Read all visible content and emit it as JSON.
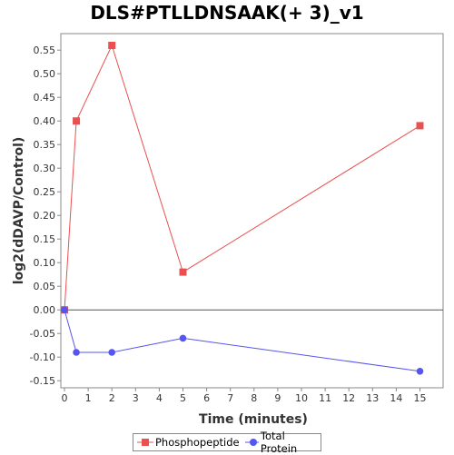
{
  "chart_data": {
    "type": "line",
    "title": "DLS#PTLLDNSAAK(+ 3)_v1",
    "xlabel": "Time (minutes)",
    "ylabel": "log2(dDAVP/Control)",
    "xlim": [
      0,
      16
    ],
    "ylim": [
      -0.165,
      0.585
    ],
    "xticks": [
      0,
      1,
      2,
      3,
      4,
      5,
      6,
      7,
      8,
      9,
      10,
      11,
      12,
      13,
      14,
      15
    ],
    "yticks": [
      -0.15,
      -0.1,
      -0.05,
      0.0,
      0.05,
      0.1,
      0.15,
      0.2,
      0.25,
      0.3,
      0.35,
      0.4,
      0.45,
      0.5,
      0.55
    ],
    "ytick_labels": [
      "-0.15",
      "-0.10",
      "-0.05",
      "0.00",
      "0.05",
      "0.10",
      "0.15",
      "0.20",
      "0.25",
      "0.30",
      "0.35",
      "0.40",
      "0.45",
      "0.50",
      "0.55"
    ],
    "zero_line": true,
    "grid": false,
    "legend_position": "bottom",
    "series": [
      {
        "name": "Phosphopeptide",
        "color": "#e8514f",
        "marker": "square",
        "x": [
          0,
          0.5,
          2,
          5,
          15
        ],
        "y": [
          0.0,
          0.4,
          0.56,
          0.08,
          0.39
        ]
      },
      {
        "name": "Total Protein",
        "color": "#5555f0",
        "marker": "circle",
        "x": [
          0,
          0.5,
          2,
          5,
          15
        ],
        "y": [
          0.0,
          -0.09,
          -0.09,
          -0.06,
          -0.13
        ]
      }
    ]
  }
}
